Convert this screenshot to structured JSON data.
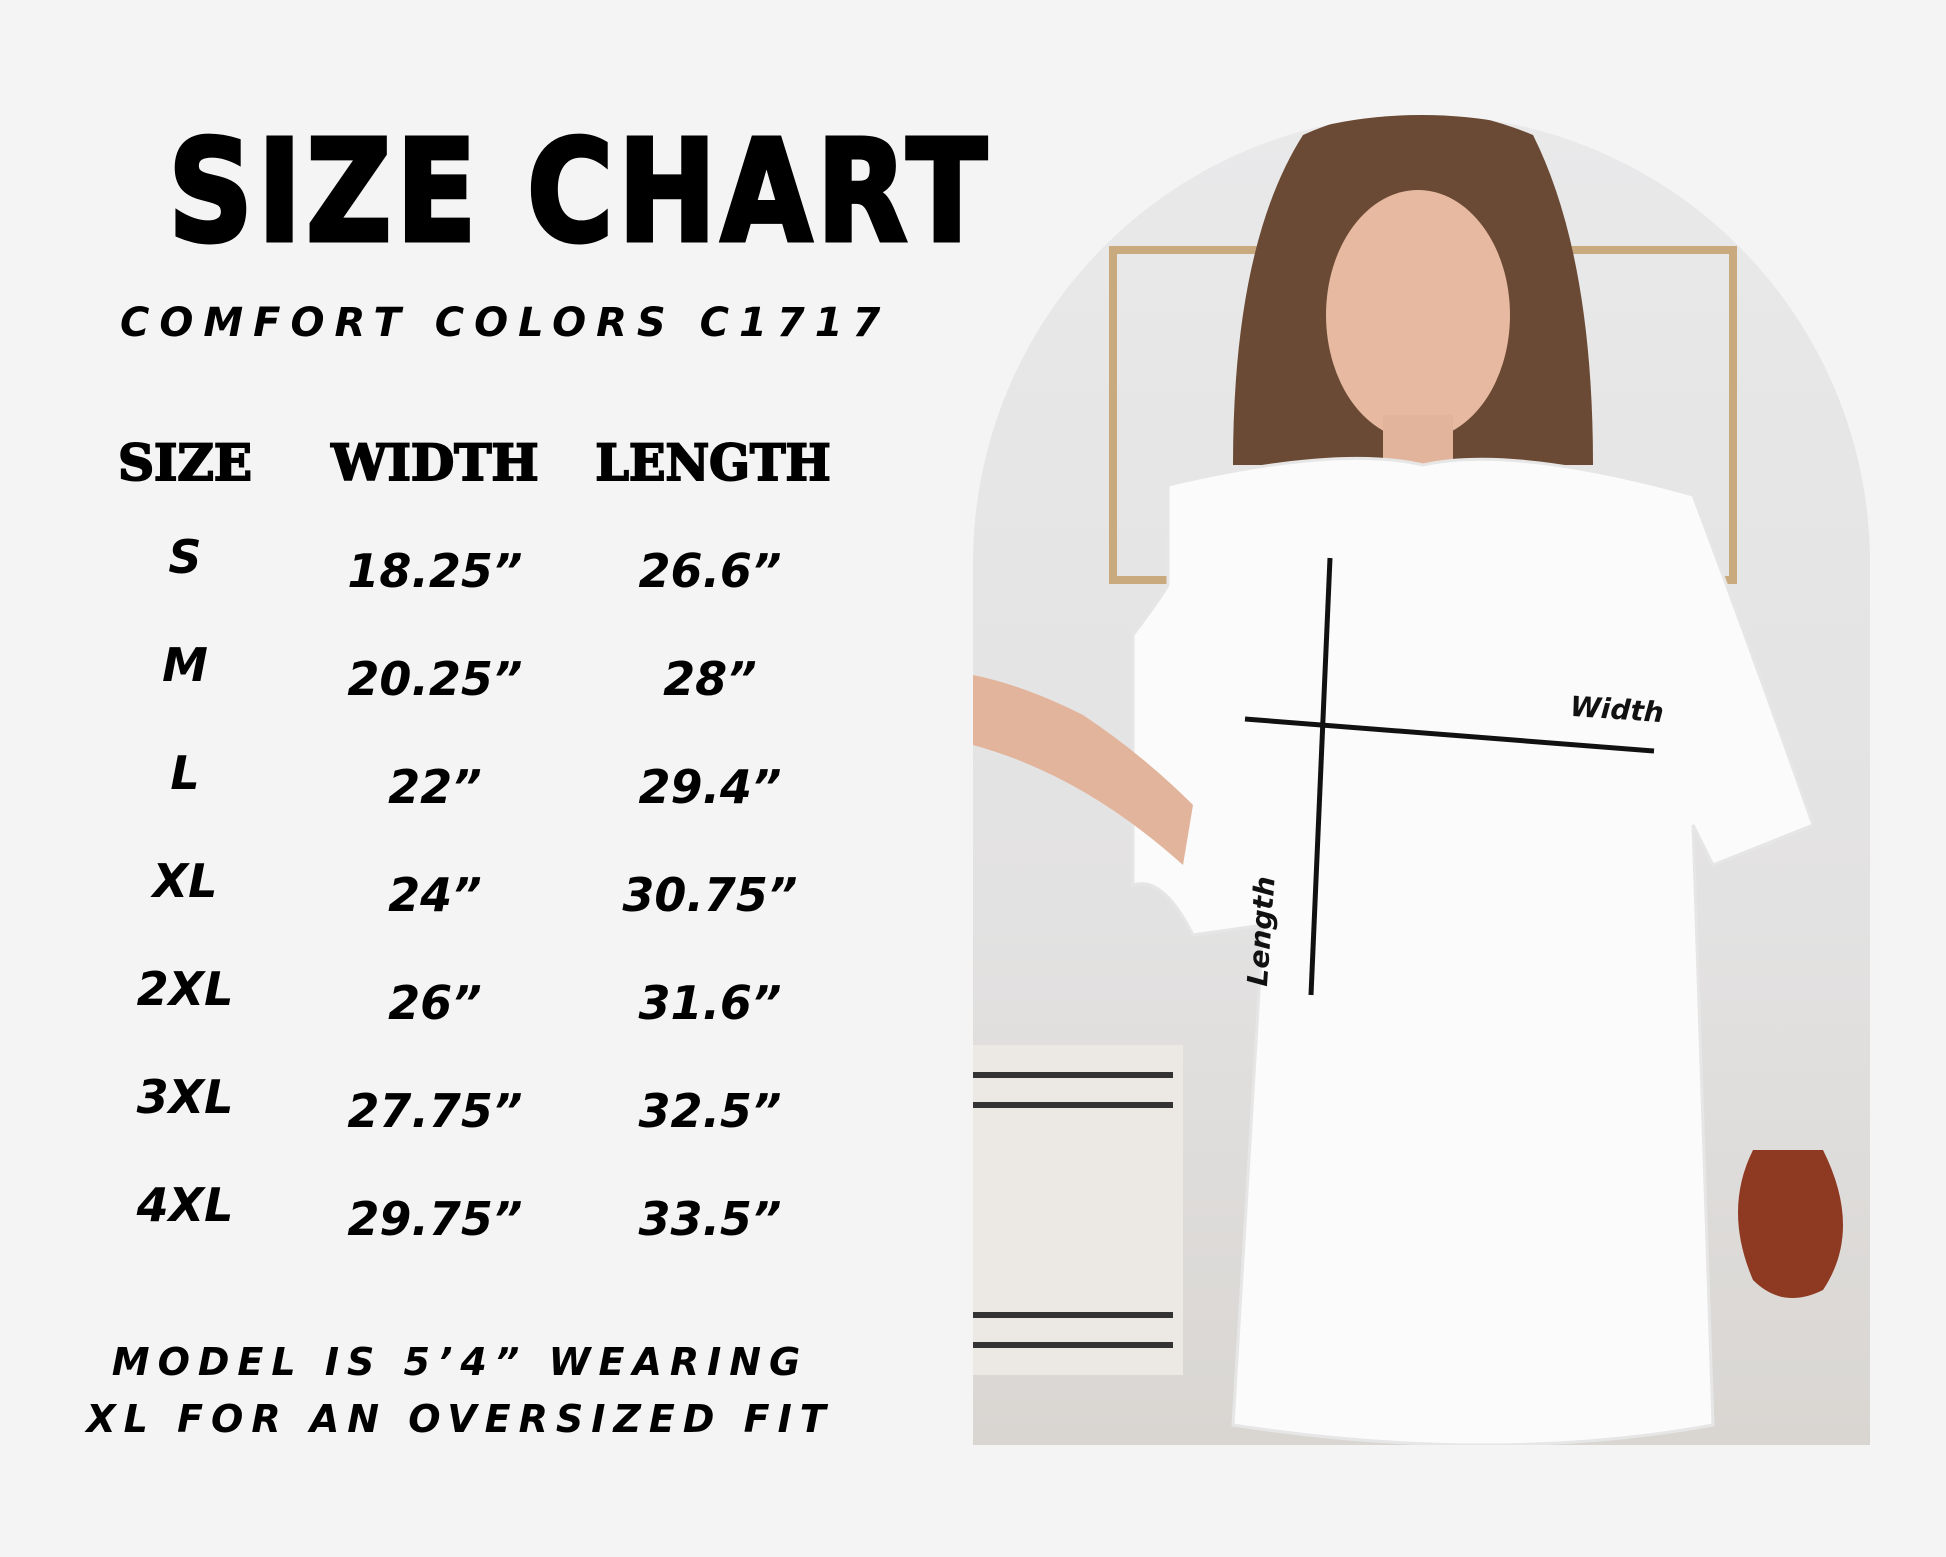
{
  "title": "SIZE CHART",
  "subtitle": "COMFORT COLORS C1717",
  "table": {
    "headers": [
      "SIZE",
      "WIDTH",
      "LENGTH"
    ],
    "rows": [
      {
        "size": "S",
        "width": "18.25”",
        "length": "26.6”"
      },
      {
        "size": "M",
        "width": "20.25”",
        "length": "28”"
      },
      {
        "size": "L",
        "width": "22”",
        "length": "29.4”"
      },
      {
        "size": "XL",
        "width": "24”",
        "length": "30.75”"
      },
      {
        "size": "2XL",
        "width": "26”",
        "length": "31.6”"
      },
      {
        "size": "3XL",
        "width": "27.75”",
        "length": "32.5”"
      },
      {
        "size": "4XL",
        "width": "29.75”",
        "length": "33.5”"
      }
    ]
  },
  "footer": {
    "line1": "MODEL IS 5’4” WEARING",
    "line2": "XL FOR AN OVERSIZED FIT"
  },
  "photo": {
    "width_label": "Width",
    "length_label": "Length"
  },
  "colors": {
    "background": "#f4f4f4",
    "text": "#000000"
  }
}
